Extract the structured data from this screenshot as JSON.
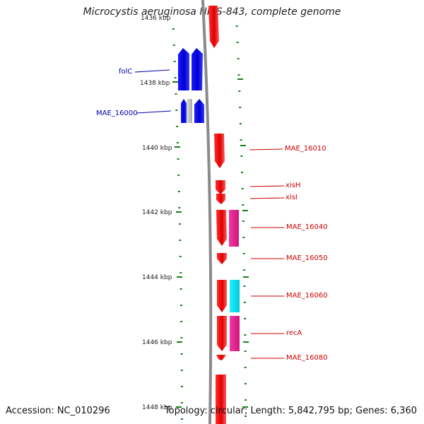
{
  "title": "Microcystis aeruginosa NIES-843, complete genome",
  "footer": {
    "accession": "Accession: NC_010296",
    "info": "Topology: circular; Length: 5,842,795 bp; Genes: 6,360"
  },
  "colors": {
    "forward_cds": "#ff0000",
    "reverse_cds": "#0000ee",
    "rna": "#e91e8c",
    "trna": "#00d8e8",
    "pseudo": "#c8c8c8",
    "backbone": "#888888",
    "tick": "#1a7f1a",
    "label_left": "#0000aa",
    "label_right": "#cc0000"
  },
  "axis": {
    "unit": "kbp",
    "ticks": [
      {
        "label": "1436 kbp"
      },
      {
        "label": "1438 kbp"
      },
      {
        "label": "1440 kbp"
      },
      {
        "label": "1442 kbp"
      },
      {
        "label": "1444 kbp"
      },
      {
        "label": "1446 kbp"
      },
      {
        "label": "1448 kbp"
      }
    ]
  },
  "genes": [
    {
      "name": "folC",
      "strand": "-",
      "type": "CDS"
    },
    {
      "name": "MAE_16000",
      "strand": "-",
      "type": "CDS"
    },
    {
      "name": "MAE_16010",
      "strand": "+",
      "type": "CDS"
    },
    {
      "name": "xisH",
      "strand": "+",
      "type": "CDS"
    },
    {
      "name": "xisI",
      "strand": "+",
      "type": "CDS"
    },
    {
      "name": "MAE_16040",
      "strand": "+",
      "type": "CDS"
    },
    {
      "name": "MAE_16050",
      "strand": "+",
      "type": "CDS"
    },
    {
      "name": "MAE_16060",
      "strand": "+",
      "type": "CDS"
    },
    {
      "name": "recA",
      "strand": "+",
      "type": "CDS"
    },
    {
      "name": "MAE_16080",
      "strand": "+",
      "type": "CDS"
    }
  ]
}
